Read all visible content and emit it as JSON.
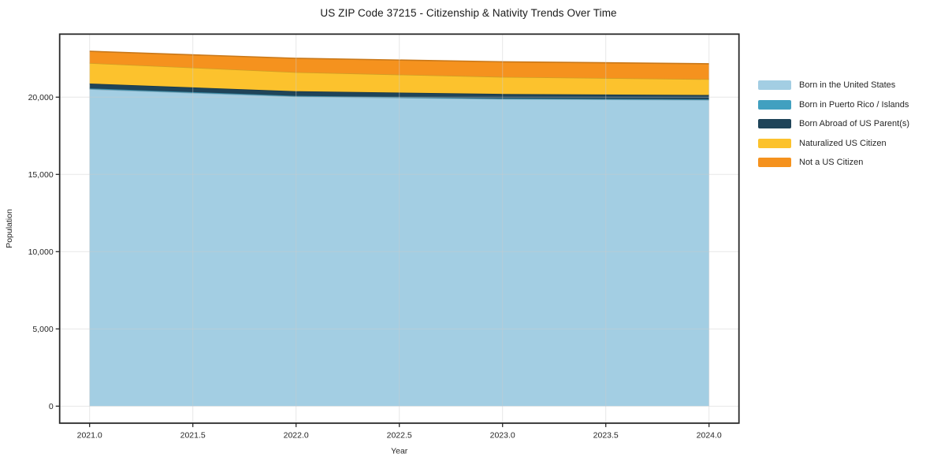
{
  "chart_data": {
    "type": "area",
    "stacked": true,
    "title": "US ZIP Code 37215 - Citizenship & Nativity Trends Over Time",
    "xlabel": "Year",
    "ylabel": "Population",
    "x": [
      2021,
      2022,
      2023,
      2024
    ],
    "series": [
      {
        "name": "Born in the United States",
        "color": "#A3CEE3",
        "values": [
          20520,
          20040,
          19880,
          19820
        ]
      },
      {
        "name": "Born in Puerto Rico / Islands",
        "color": "#41A0C0",
        "values": [
          50,
          45,
          40,
          40
        ]
      },
      {
        "name": "Born Abroad of US Parent(s)",
        "color": "#1F4459",
        "values": [
          310,
          300,
          290,
          280
        ]
      },
      {
        "name": "Naturalized US Citizen",
        "color": "#FCC22D",
        "values": [
          1330,
          1230,
          1100,
          1020
        ]
      },
      {
        "name": "Not a US Citizen",
        "color": "#F5921E",
        "values": [
          760,
          900,
          980,
          1000
        ]
      }
    ],
    "x_tick_values": [
      2021.0,
      2021.5,
      2022.0,
      2022.5,
      2023.0,
      2023.5,
      2024.0
    ],
    "x_tick_labels": [
      "2021.0",
      "2021.5",
      "2022.0",
      "2022.5",
      "2023.0",
      "2023.5",
      "2024.0"
    ],
    "y_tick_values": [
      0,
      5000,
      10000,
      15000,
      20000
    ],
    "y_tick_labels": [
      "0",
      "5,000",
      "10,000",
      "15,000",
      "20,000"
    ],
    "xlim": [
      2020.855,
      2024.145
    ],
    "ylim": [
      -1100,
      24080
    ],
    "grid": true,
    "grid_color": "#cccccc",
    "frame_color": "#2a2a2a",
    "legend_position": "right-outside",
    "background": "#ffffff"
  }
}
